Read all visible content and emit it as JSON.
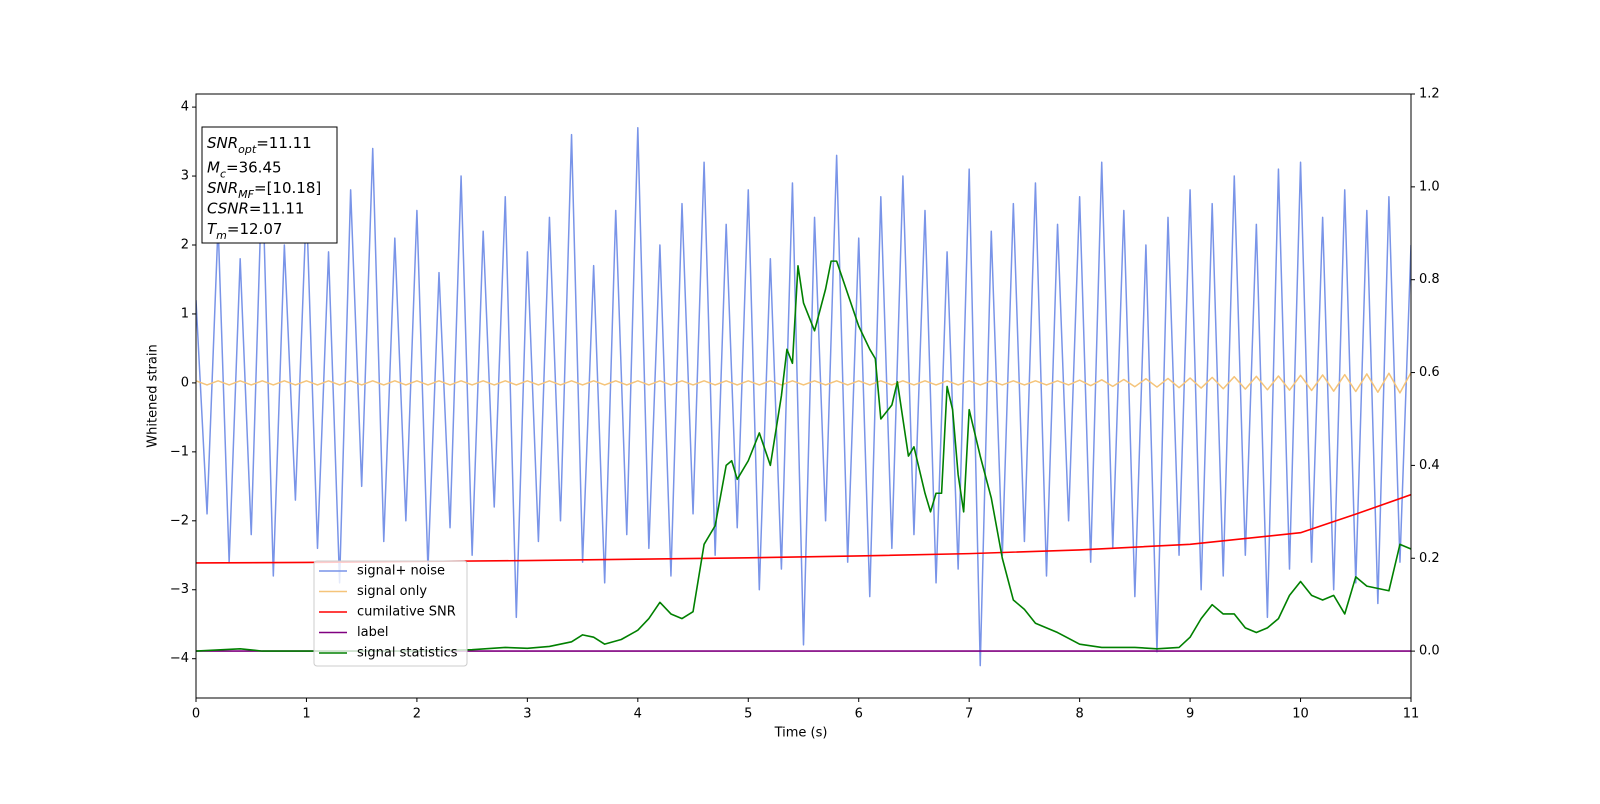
{
  "chart_data": {
    "type": "line",
    "xlabel": "Time (s)",
    "ylabel": "Whitened strain",
    "xlim": [
      0,
      11
    ],
    "ylim": [
      -4.57,
      4.19
    ],
    "y2lim": [
      -0.101,
      1.2
    ],
    "xticks": [
      0,
      1,
      2,
      3,
      4,
      5,
      6,
      7,
      8,
      9,
      10,
      11
    ],
    "yticks": [
      {
        "value": -4,
        "label": "−4"
      },
      {
        "value": -3,
        "label": "−3"
      },
      {
        "value": -2,
        "label": "−2"
      },
      {
        "value": -1,
        "label": "−1"
      },
      0,
      1,
      2,
      3,
      4
    ],
    "y2ticks": [
      {
        "value": 0,
        "label": "0.0"
      },
      0.2,
      0.4,
      0.6,
      0.8,
      {
        "value": 1,
        "label": "1.0"
      },
      1.2
    ],
    "annotation": [
      {
        "text": "SNR",
        "sub": "opt",
        "rest": "=11.11"
      },
      {
        "text": "M",
        "sub": "c",
        "rest": "=36.45"
      },
      {
        "text": "SNR",
        "sub": "MF",
        "rest": "=[10.18]"
      },
      {
        "text": "CSNR",
        "sub": null,
        "rest": "=11.11"
      },
      {
        "text": "T",
        "sub": "m",
        "rest": "=12.07"
      }
    ],
    "x": [
      0,
      0.1,
      0.2,
      0.3,
      0.4,
      0.5,
      0.6,
      0.7,
      0.8,
      0.9,
      1,
      1.1,
      1.2,
      1.3,
      1.4,
      1.5,
      1.6,
      1.7,
      1.8,
      1.9,
      2,
      2.1,
      2.2,
      2.3,
      2.4,
      2.5,
      2.6,
      2.7,
      2.8,
      2.9,
      3,
      3.1,
      3.2,
      3.3,
      3.4,
      3.5,
      3.6,
      3.7,
      3.8,
      3.9,
      4,
      4.1,
      4.2,
      4.3,
      4.4,
      4.5,
      4.6,
      4.7,
      4.8,
      4.9,
      5,
      5.1,
      5.2,
      5.3,
      5.4,
      5.5,
      5.6,
      5.7,
      5.8,
      5.9,
      6,
      6.1,
      6.2,
      6.3,
      6.4,
      6.5,
      6.6,
      6.7,
      6.8,
      6.9,
      7,
      7.1,
      7.2,
      7.3,
      7.4,
      7.5,
      7.6,
      7.7,
      7.8,
      7.9,
      8,
      8.1,
      8.2,
      8.3,
      8.4,
      8.5,
      8.6,
      8.7,
      8.8,
      8.9,
      9,
      9.1,
      9.2,
      9.3,
      9.4,
      9.5,
      9.6,
      9.7,
      9.8,
      9.9,
      10,
      10.1,
      10.2,
      10.3,
      10.4,
      10.5,
      10.6,
      10.7,
      10.8,
      10.9,
      11
    ],
    "series": [
      {
        "name": "signal+ noise",
        "color": "#7994e8",
        "width": 1.5,
        "values": [
          1.2,
          -1.9,
          2.3,
          -2.6,
          1.8,
          -2.2,
          3.1,
          -2.8,
          2.0,
          -1.7,
          2.6,
          -2.4,
          1.9,
          -2.9,
          2.8,
          -1.5,
          3.4,
          -2.3,
          2.1,
          -2.0,
          2.5,
          -2.7,
          1.6,
          -2.1,
          3.0,
          -2.5,
          2.2,
          -1.8,
          2.7,
          -3.4,
          1.9,
          -2.3,
          2.4,
          -2.0,
          3.6,
          -2.6,
          1.7,
          -2.9,
          2.5,
          -2.2,
          3.7,
          -2.4,
          2.0,
          -2.8,
          2.6,
          -1.9,
          3.2,
          -2.5,
          2.3,
          -2.1,
          2.8,
          -3.0,
          1.8,
          -2.7,
          2.9,
          -3.8,
          2.4,
          -2.0,
          3.3,
          -2.6,
          2.1,
          -3.1,
          2.7,
          -2.4,
          3.0,
          -2.2,
          2.5,
          -2.9,
          1.9,
          -2.7,
          3.1,
          -4.1,
          2.2,
          -2.5,
          2.6,
          -2.3,
          2.9,
          -2.8,
          2.3,
          -2.0,
          2.7,
          -2.6,
          3.2,
          -2.4,
          2.5,
          -3.1,
          2.0,
          -3.9,
          2.4,
          -2.5,
          2.8,
          -3.0,
          2.6,
          -2.8,
          3.0,
          -2.5,
          2.3,
          -3.4,
          3.1,
          -2.7,
          3.2,
          -2.6,
          2.4,
          -3.0,
          2.8,
          -2.9,
          2.5,
          -3.2,
          2.7,
          -2.6,
          2.0
        ]
      },
      {
        "name": "signal only",
        "color": "#f5c47a",
        "width": 1.5,
        "values": [
          0.03,
          -0.03,
          0.03,
          -0.03,
          0.03,
          -0.03,
          0.03,
          -0.03,
          0.03,
          -0.03,
          0.03,
          -0.03,
          0.03,
          -0.03,
          0.03,
          -0.03,
          0.03,
          -0.03,
          0.03,
          -0.03,
          0.03,
          -0.03,
          0.03,
          -0.03,
          0.03,
          -0.03,
          0.03,
          -0.03,
          0.03,
          -0.03,
          0.03,
          -0.03,
          0.03,
          -0.03,
          0.03,
          -0.03,
          0.03,
          -0.03,
          0.03,
          -0.03,
          0.03,
          -0.03,
          0.03,
          -0.03,
          0.03,
          -0.03,
          0.03,
          -0.03,
          0.03,
          -0.03,
          0.03,
          -0.03,
          0.03,
          -0.03,
          0.03,
          -0.03,
          0.03,
          -0.03,
          0.03,
          -0.03,
          0.03,
          -0.03,
          0.03,
          -0.03,
          0.03,
          -0.03,
          0.03,
          -0.03,
          0.03,
          -0.03,
          0.03,
          -0.03,
          0.03,
          -0.03,
          0.03,
          -0.03,
          0.03,
          -0.03,
          0.03,
          -0.03,
          0.04,
          -0.04,
          0.045,
          -0.05,
          0.05,
          -0.055,
          0.06,
          -0.06,
          0.065,
          -0.07,
          0.07,
          -0.075,
          0.08,
          -0.085,
          0.09,
          -0.09,
          0.095,
          -0.1,
          0.1,
          -0.105,
          0.11,
          -0.11,
          0.115,
          -0.12,
          0.12,
          -0.125,
          0.13,
          -0.135,
          0.14,
          -0.145,
          0.15
        ]
      },
      {
        "name": "cumilative SNR",
        "color": "#ff0000",
        "width": 1.6,
        "axis": "y2",
        "x": [
          0,
          1,
          2,
          3,
          4,
          5,
          6,
          7,
          8,
          9,
          10,
          10.5,
          11
        ],
        "values": [
          0.19,
          0.191,
          0.193,
          0.195,
          0.198,
          0.201,
          0.205,
          0.21,
          0.218,
          0.23,
          0.255,
          0.295,
          0.337
        ]
      },
      {
        "name": "label",
        "color": "#800080",
        "width": 1.6,
        "axis": "y2",
        "x": [
          0,
          11
        ],
        "values": [
          0,
          0
        ]
      },
      {
        "name": "signal statistics",
        "color": "#008000",
        "width": 1.6,
        "axis": "y2",
        "x": [
          0,
          0.4,
          0.6,
          1,
          2,
          2.5,
          2.8,
          3.0,
          3.2,
          3.4,
          3.5,
          3.6,
          3.7,
          3.85,
          4.0,
          4.1,
          4.2,
          4.3,
          4.4,
          4.5,
          4.6,
          4.7,
          4.8,
          4.85,
          4.9,
          5.0,
          5.1,
          5.2,
          5.3,
          5.35,
          5.4,
          5.45,
          5.5,
          5.6,
          5.7,
          5.75,
          5.8,
          5.9,
          6.0,
          6.1,
          6.15,
          6.2,
          6.3,
          6.35,
          6.45,
          6.5,
          6.6,
          6.65,
          6.7,
          6.75,
          6.8,
          6.85,
          6.9,
          6.95,
          7.0,
          7.1,
          7.2,
          7.3,
          7.4,
          7.5,
          7.6,
          7.8,
          8.0,
          8.2,
          8.5,
          8.7,
          8.9,
          9.0,
          9.1,
          9.2,
          9.3,
          9.4,
          9.5,
          9.6,
          9.7,
          9.8,
          9.9,
          10.0,
          10.1,
          10.2,
          10.3,
          10.4,
          10.5,
          10.6,
          10.8,
          10.9,
          11
        ],
        "values": [
          0.0,
          0.005,
          0.0,
          0.0,
          0.0,
          0.003,
          0.008,
          0.006,
          0.01,
          0.02,
          0.035,
          0.03,
          0.015,
          0.025,
          0.045,
          0.07,
          0.105,
          0.08,
          0.07,
          0.085,
          0.23,
          0.27,
          0.4,
          0.41,
          0.37,
          0.41,
          0.47,
          0.4,
          0.55,
          0.65,
          0.62,
          0.83,
          0.75,
          0.69,
          0.78,
          0.84,
          0.84,
          0.77,
          0.7,
          0.65,
          0.63,
          0.5,
          0.53,
          0.58,
          0.42,
          0.44,
          0.34,
          0.3,
          0.34,
          0.34,
          0.57,
          0.52,
          0.38,
          0.3,
          0.52,
          0.42,
          0.33,
          0.2,
          0.11,
          0.09,
          0.06,
          0.04,
          0.015,
          0.008,
          0.008,
          0.005,
          0.008,
          0.03,
          0.07,
          0.1,
          0.08,
          0.08,
          0.05,
          0.04,
          0.05,
          0.07,
          0.12,
          0.15,
          0.12,
          0.11,
          0.12,
          0.08,
          0.16,
          0.14,
          0.13,
          0.23,
          0.22
        ]
      }
    ]
  }
}
